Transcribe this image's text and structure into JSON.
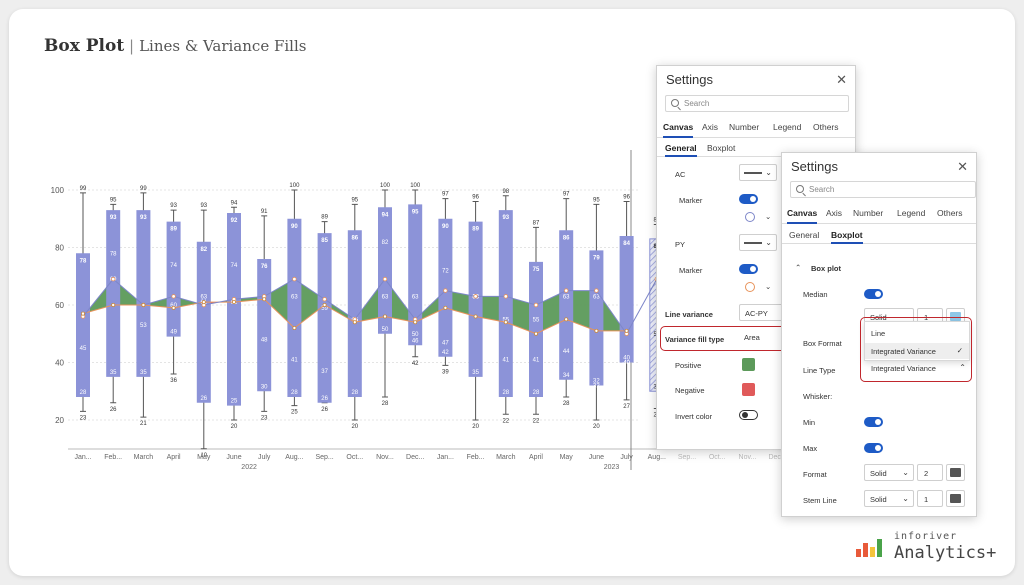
{
  "header": {
    "title": "Box Plot",
    "subtitle": "Lines & Variance Fills"
  },
  "chart_data": {
    "type": "box",
    "categories": [
      "Jan...",
      "Feb...",
      "March",
      "April",
      "May",
      "June",
      "July",
      "Aug...",
      "Sep...",
      "Oct...",
      "Nov...",
      "Dec...",
      "Jan...",
      "Feb...",
      "March",
      "April",
      "May",
      "June",
      "July",
      "Aug...",
      "Sep...",
      "Oct...",
      "Nov...",
      "Dec..."
    ],
    "years": [
      {
        "label": "2022",
        "start": 0,
        "end": 11
      },
      {
        "label": "2023",
        "start": 12,
        "end": 23
      }
    ],
    "y_ticks": [
      20,
      40,
      60,
      80,
      100
    ],
    "ylim": [
      10,
      104
    ],
    "series": [
      {
        "name": "AC",
        "values": [
          56,
          69,
          60,
          63,
          60,
          62,
          63,
          69,
          62,
          55,
          69,
          55,
          65,
          63,
          63,
          60,
          65,
          65,
          50,
          69
        ]
      },
      {
        "name": "PY",
        "values": [
          57,
          60,
          60,
          59,
          61,
          61,
          62,
          52,
          60,
          54,
          56,
          54,
          59,
          56,
          54,
          50,
          55,
          51,
          51
        ]
      }
    ],
    "boxes": [
      {
        "max": 99,
        "q3": 78,
        "median": 45,
        "q1": 28,
        "min": 23,
        "hi": 56,
        "lo": 28,
        "label_hi": "57",
        "label_mid": "45"
      },
      {
        "max": 95,
        "q3": 93,
        "upper": 78,
        "median": 69,
        "q1": 35,
        "min": 26
      },
      {
        "max": 99,
        "q3": 93,
        "median": 53,
        "q1": 35,
        "min": 21
      },
      {
        "max": 93,
        "q3": 89,
        "upper": 74,
        "median": 60,
        "q1": 49,
        "min": 36
      },
      {
        "max": 93,
        "q3": 82,
        "upper": 63,
        "median": 61,
        "q1": 26,
        "min": 10
      },
      {
        "max": 94,
        "q3": 92,
        "upper": 74,
        "median": 61,
        "q1": 25,
        "min": 20
      },
      {
        "max": 91,
        "q3": 76,
        "median": 48,
        "q1": 30,
        "min": 23
      },
      {
        "max": 100,
        "q3": 90,
        "upper": 63,
        "median": 41,
        "q1": 28,
        "min": 25
      },
      {
        "max": 89,
        "q3": 85,
        "upper": 59,
        "median": 37,
        "q1": 26,
        "min": 26
      },
      {
        "max": 95,
        "q3": 86,
        "upper": 55,
        "median": 55,
        "q1": 28,
        "min": 20
      },
      {
        "max": 100,
        "q3": 94,
        "upper": 82,
        "median": 63,
        "q1": 50,
        "min": 28
      },
      {
        "max": 100,
        "q3": 95,
        "upper": 63,
        "median": 50,
        "q1": 46,
        "min": 42
      },
      {
        "max": 97,
        "q3": 90,
        "upper": 72,
        "median": 47,
        "q1": 42,
        "min": 39
      },
      {
        "max": 96,
        "q3": 89,
        "upper": 63,
        "median": 63,
        "q1": 35,
        "min": 20
      },
      {
        "max": 98,
        "q3": 93,
        "upper": 55,
        "median": 41,
        "q1": 28,
        "min": 22
      },
      {
        "max": 87,
        "q3": 75,
        "upper": 55,
        "median": 41,
        "q1": 28,
        "min": 22
      },
      {
        "max": 97,
        "q3": 86,
        "upper": 63,
        "median": 44,
        "q1": 34,
        "min": 28
      },
      {
        "max": 95,
        "q3": 79,
        "upper": 63,
        "median": 32,
        "q1": 32,
        "min": 20
      },
      {
        "max": 96,
        "q3": 84,
        "upper": 40,
        "median": 40,
        "q1": 40,
        "min": 27
      },
      {
        "max": 88,
        "q3": 83,
        "median": 50,
        "q1": 30,
        "min": 24,
        "hatched": true
      }
    ]
  },
  "settings1": {
    "title": "Settings",
    "search_placeholder": "Search",
    "tabs": [
      "Canvas",
      "Axis",
      "Number",
      "Legend",
      "Others"
    ],
    "subtabs": [
      "General",
      "Boxplot"
    ],
    "ac_label": "AC",
    "marker_label": "Marker",
    "py_label": "PY",
    "marker2_label": "Marker",
    "line_variance_label": "Line variance",
    "line_variance_value": "AC-PY",
    "variance_fill_type_label": "Variance fill type",
    "variance_fill_type_value": "Area",
    "positive_label": "Positive",
    "negative_label": "Negative",
    "invert_color_label": "Invert color",
    "positive_color": "#5c9a5a",
    "negative_color": "#e05a5a"
  },
  "settings2": {
    "title": "Settings",
    "search_placeholder": "Search",
    "tabs": [
      "Canvas",
      "Axis",
      "Number",
      "Legend",
      "Others"
    ],
    "subtabs": [
      "General",
      "Boxplot"
    ],
    "section_label": "Box plot",
    "median_label": "Median",
    "solid_value": "Solid",
    "one_value": "1",
    "box_format_label": "Box Format",
    "line_type_label": "Line Type",
    "line_type_value": "Integrated Variance",
    "menu_options": [
      "Line",
      "Integrated Variance"
    ],
    "whisker_label": "Whisker:",
    "min_label": "Min",
    "max_label": "Max",
    "format_label": "Format",
    "format_value": "Solid",
    "format_num": "2",
    "stem_label": "Stem Line",
    "stem_value": "Solid",
    "stem_num": "1"
  },
  "logo": {
    "line1": "inforiver",
    "line2": "Analytics+"
  }
}
